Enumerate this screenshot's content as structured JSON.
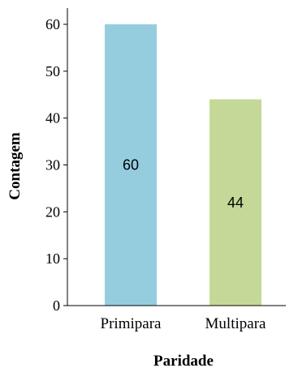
{
  "chart_data": {
    "type": "bar",
    "categories": [
      "Primipara",
      "Multipara"
    ],
    "values": [
      60,
      44
    ],
    "data_labels": [
      "60",
      "44"
    ],
    "xlabel": "Paridade",
    "ylabel": "Contagem",
    "ylim": [
      0,
      60
    ],
    "yticks": [
      "0",
      "10",
      "20",
      "30",
      "40",
      "50",
      "60"
    ],
    "colors": [
      "#95cddf",
      "#c4d998"
    ],
    "grid": false,
    "legend": "none"
  }
}
